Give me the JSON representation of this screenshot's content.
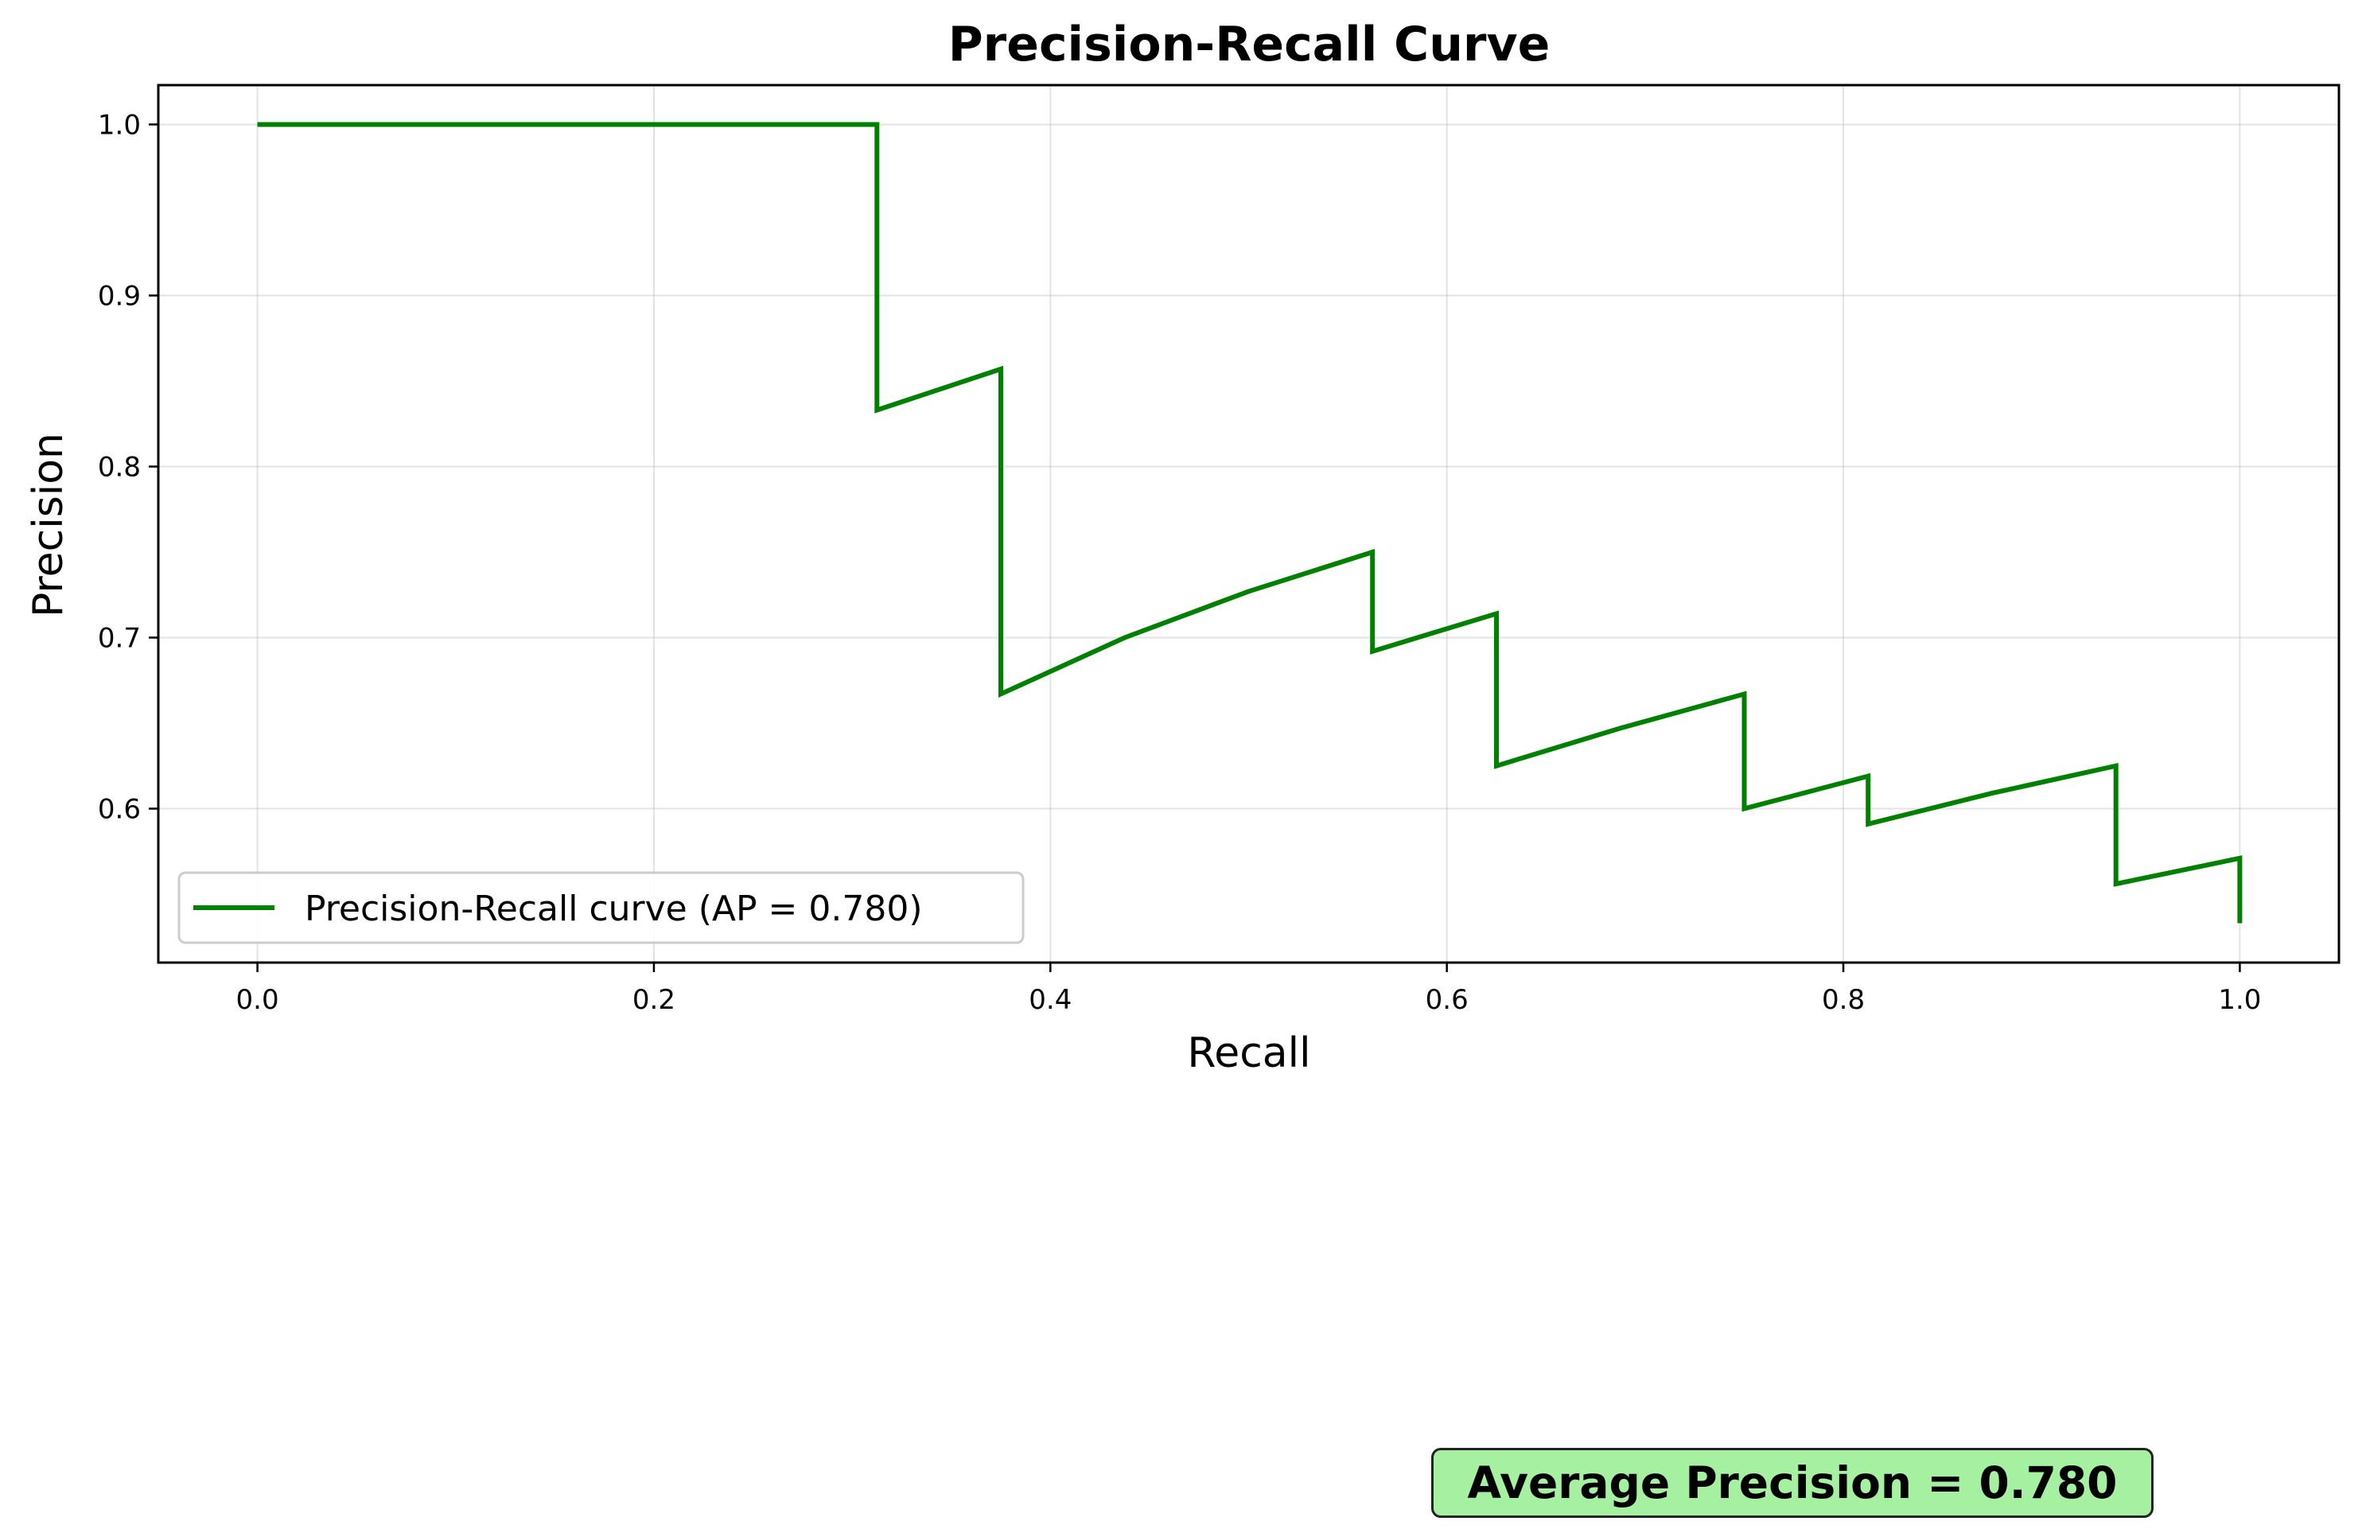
{
  "chart_data": {
    "type": "line",
    "title": "Precision-Recall Curve",
    "xlabel": "Recall",
    "ylabel": "Precision",
    "xlim": [
      -0.05,
      1.05
    ],
    "ylim": [
      0.51,
      1.023
    ],
    "x_ticks": [
      "0.0",
      "0.2",
      "0.4",
      "0.6",
      "0.8",
      "1.0"
    ],
    "x_tick_values": [
      0.0,
      0.2,
      0.4,
      0.6,
      0.8,
      1.0
    ],
    "y_ticks": [
      "0.6",
      "0.7",
      "0.8",
      "0.9",
      "1.0"
    ],
    "y_tick_values": [
      0.6,
      0.7,
      0.8,
      0.9,
      1.0
    ],
    "grid": true,
    "legend_position": "lower-left",
    "series": [
      {
        "name": "Precision-Recall curve (AP = 0.780)",
        "color": "#008000",
        "x": [
          0.0,
          0.3125,
          0.3125,
          0.375,
          0.375,
          0.4375,
          0.5,
          0.5625,
          0.5625,
          0.625,
          0.625,
          0.6875,
          0.75,
          0.75,
          0.8125,
          0.8125,
          0.875,
          0.9375,
          0.9375,
          1.0,
          1.0
        ],
        "y": [
          1.0,
          1.0,
          0.833,
          0.857,
          0.667,
          0.7,
          0.727,
          0.75,
          0.692,
          0.714,
          0.625,
          0.647,
          0.667,
          0.6,
          0.619,
          0.591,
          0.609,
          0.625,
          0.556,
          0.571,
          0.533
        ]
      }
    ],
    "annotation": "Average Precision = 0.780",
    "annotation_color": "#a5f0a1"
  }
}
